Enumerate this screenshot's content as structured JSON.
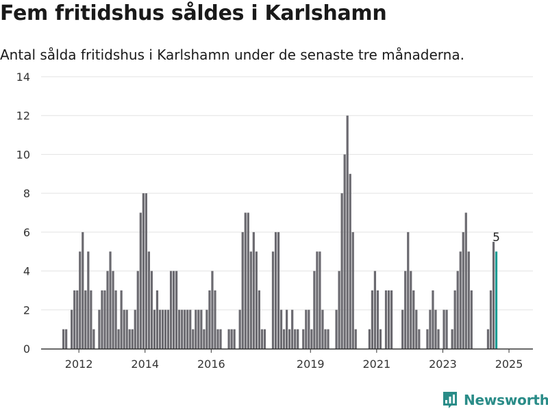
{
  "title": "Fem fritidshus såldes i Karlshamn",
  "subtitle": "Antal sålda fritidshus i Karlshamn under de senaste tre månaderna.",
  "brand": {
    "name": "Newsworthy",
    "icon": "newsworthy-logo-icon"
  },
  "colors": {
    "bar": "#6b6a70",
    "highlight": "#1c9c94",
    "grid": "#e2e2e2",
    "axis": "#333333",
    "text": "#333333"
  },
  "chart_data": {
    "type": "bar",
    "x_start_year": 2011.5,
    "x_end_year": 2026.0,
    "ylim": [
      0,
      14
    ],
    "yticks": [
      0,
      2,
      4,
      6,
      8,
      10,
      12,
      14
    ],
    "xticks": [
      "2012",
      "2014",
      "2016",
      "2019",
      "2021",
      "2023",
      "2025"
    ],
    "xtick_years": [
      2012,
      2014,
      2016,
      2019,
      2021,
      2023,
      2025
    ],
    "highlight_label": "5",
    "values": [
      1,
      1,
      0,
      2,
      3,
      3,
      5,
      6,
      3,
      5,
      3,
      1,
      0,
      2,
      3,
      3,
      4,
      5,
      4,
      3,
      1,
      3,
      2,
      2,
      1,
      1,
      2,
      4,
      7,
      8,
      8,
      5,
      4,
      2,
      3,
      2,
      2,
      2,
      2,
      4,
      4,
      4,
      2,
      2,
      2,
      2,
      2,
      1,
      2,
      2,
      2,
      1,
      2,
      3,
      4,
      3,
      1,
      1,
      0,
      0,
      1,
      1,
      1,
      0,
      2,
      6,
      7,
      7,
      5,
      6,
      5,
      3,
      1,
      1,
      0,
      0,
      5,
      6,
      6,
      2,
      1,
      2,
      1,
      2,
      1,
      1,
      0,
      1,
      2,
      2,
      1,
      4,
      5,
      5,
      2,
      1,
      1,
      0,
      0,
      2,
      4,
      8,
      10,
      12,
      9,
      6,
      1,
      0,
      0,
      0,
      0,
      1,
      3,
      4,
      3,
      1,
      0,
      3,
      3,
      3,
      0,
      0,
      0,
      2,
      4,
      6,
      4,
      3,
      2,
      1,
      0,
      0,
      1,
      2,
      3,
      2,
      1,
      0,
      2,
      2,
      0,
      1,
      3,
      4,
      5,
      6,
      7,
      5,
      3,
      0,
      0,
      0,
      0,
      0,
      1,
      3,
      5.5,
      5
    ]
  }
}
